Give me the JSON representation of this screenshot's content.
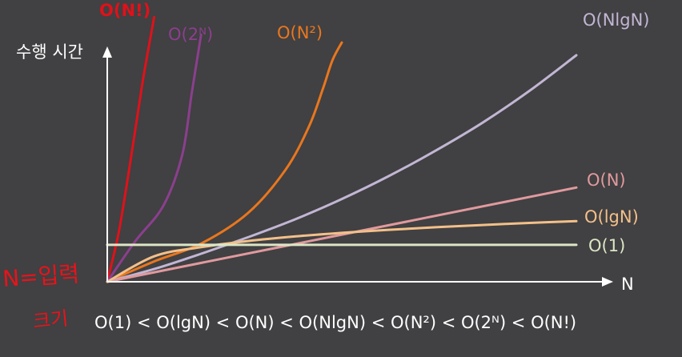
{
  "chart_data": {
    "type": "line",
    "ylabel": "수행 시간",
    "xlabel": "N",
    "xlim": [
      0,
      10
    ],
    "ylim": [
      0,
      10
    ],
    "series": [
      {
        "name": "O(N!)",
        "color": "#e0111a",
        "x": [
          0,
          0.25,
          0.5,
          0.75,
          1.0
        ],
        "y": [
          0,
          2.0,
          4.8,
          7.8,
          10.4
        ]
      },
      {
        "name": "O(2ᴺ)",
        "color": "#8b3f8e",
        "x": [
          0,
          0.6,
          1.2,
          1.6,
          1.8,
          2.0
        ],
        "y": [
          0,
          1.6,
          3.0,
          5.0,
          7.4,
          9.7
        ]
      },
      {
        "name": "O(N²)",
        "color": "#e8771e",
        "x": [
          0,
          1.0,
          2.0,
          3.0,
          3.8,
          4.3,
          4.6,
          4.8,
          5.0
        ],
        "y": [
          0,
          0.8,
          1.5,
          2.7,
          4.4,
          6.1,
          7.6,
          8.7,
          9.4
        ]
      },
      {
        "name": "O(NlgN)",
        "color": "#c2b6d4",
        "x": [
          0,
          1,
          2,
          3,
          4,
          5,
          6,
          7,
          8,
          9,
          10
        ],
        "y": [
          0,
          0.5,
          1.1,
          1.75,
          2.45,
          3.25,
          4.15,
          5.15,
          6.25,
          7.5,
          8.9
        ]
      },
      {
        "name": "O(N)",
        "color": "#e09a9e",
        "x": [
          0,
          10
        ],
        "y": [
          0,
          3.7
        ]
      },
      {
        "name": "O(lgN)",
        "color": "#f2c08a",
        "x": [
          0,
          1,
          2,
          3,
          4,
          5,
          6,
          7,
          8,
          9,
          10
        ],
        "y": [
          0,
          1.0,
          1.36,
          1.6,
          1.78,
          1.92,
          2.04,
          2.14,
          2.23,
          2.31,
          2.38
        ]
      },
      {
        "name": "O(1)",
        "color": "#dbe6c5",
        "x": [
          0,
          10
        ],
        "y": [
          1.45,
          1.45
        ]
      }
    ],
    "footer": "O(1) < O(lgN) < O(N) < O(NlgN) < O(N²) < O(2ᴺ) < O(N!)",
    "annotation": [
      "N=입력",
      "크기"
    ]
  }
}
